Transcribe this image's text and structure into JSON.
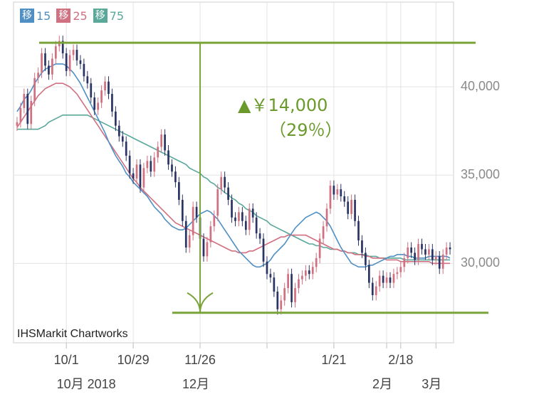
{
  "chart_data": {
    "type": "candlestick",
    "credit": "IHSMarkit Chartworks",
    "legend": [
      {
        "label": "移",
        "name": "15",
        "color": "#4f8fc4"
      },
      {
        "label": "移",
        "name": "25",
        "color": "#d07080"
      },
      {
        "label": "移",
        "name": "75",
        "color": "#5aa89a"
      }
    ],
    "ylim": [
      25500,
      44800
    ],
    "y_ticks": [
      {
        "value": 30000,
        "label": "30,000"
      },
      {
        "value": 35000,
        "label": "35,000"
      },
      {
        "value": 40000,
        "label": "40,000"
      }
    ],
    "x_ticks": [
      {
        "t": 14,
        "label": "10/1",
        "sub": "10月 2018"
      },
      {
        "t": 33,
        "label": "10/29",
        "sub": ""
      },
      {
        "t": 52,
        "label": "11/26",
        "sub": "12月"
      },
      {
        "t": 71,
        "label": "",
        "sub": ""
      },
      {
        "t": 90,
        "label": "1/21",
        "sub": ""
      },
      {
        "t": 105,
        "label": "",
        "sub": "2月"
      },
      {
        "t": 109,
        "label": "2/18",
        "sub": ""
      },
      {
        "t": 119,
        "label": "",
        "sub": "3月"
      }
    ],
    "t_range": [
      -1,
      124
    ],
    "close": [
      38000,
      38800,
      39600,
      37900,
      39200,
      40500,
      40800,
      41900,
      41200,
      40700,
      41600,
      42300,
      42600,
      41900,
      40900,
      41800,
      42100,
      41500,
      41300,
      40600,
      40200,
      39400,
      38700,
      39100,
      39800,
      40300,
      39600,
      38600,
      37800,
      37200,
      36900,
      36100,
      35100,
      34800,
      35600,
      34300,
      35400,
      35800,
      35200,
      36000,
      36600,
      37300,
      36400,
      35600,
      35200,
      34600,
      33600,
      32400,
      30900,
      31600,
      33200,
      32600,
      31400,
      30400,
      31200,
      32100,
      32700,
      34200,
      34900,
      34300,
      33600,
      32600,
      32400,
      32900,
      32400,
      31900,
      33100,
      32600,
      31700,
      31400,
      30100,
      29400,
      29200,
      28400,
      27400,
      27900,
      28600,
      29400,
      27800,
      28600,
      29100,
      29300,
      29600,
      29400,
      29800,
      30300,
      31400,
      32100,
      33100,
      34400,
      33900,
      34200,
      33800,
      33500,
      32800,
      33600,
      32400,
      31300,
      30600,
      29900,
      28900,
      28200,
      28700,
      29300,
      28900,
      29200,
      28900,
      29400,
      29500,
      29800,
      30300,
      30900,
      30600,
      30200,
      31100,
      30800,
      30500,
      30800,
      30200,
      30400,
      29700,
      30500,
      30900,
      30800
    ],
    "ma15": [
      38600,
      38900,
      39300,
      39500,
      39800,
      40200,
      40500,
      40800,
      41000,
      41100,
      41200,
      41300,
      41300,
      41300,
      41200,
      41000,
      40800,
      40500,
      40200,
      39800,
      39400,
      39000,
      38600,
      38200,
      37800,
      37400,
      36900,
      36500,
      36100,
      35800,
      35500,
      35100,
      34900,
      34600,
      34400,
      34200,
      34000,
      33800,
      33500,
      33200,
      33000,
      32800,
      32500,
      32300,
      32100,
      32000,
      31900,
      31900,
      32000,
      32200,
      32400,
      32600,
      32800,
      32900,
      33000,
      32900,
      32700,
      32500,
      32200,
      31900,
      31600,
      31300,
      31000,
      30700,
      30500,
      30300,
      30100,
      29900,
      29800,
      29800,
      29900,
      30000,
      30200,
      30500,
      30700,
      30900,
      31100,
      31400,
      31700,
      32000,
      32200,
      32400,
      32600,
      32700,
      32800,
      32900,
      32800,
      32600,
      32400,
      32100,
      31700,
      31300,
      30900,
      30600,
      30300,
      30000,
      29900,
      29800,
      29800,
      29800,
      29900,
      29900,
      30000,
      30100,
      30200,
      30300,
      30400,
      30400,
      30500,
      30500,
      30500,
      30400,
      30400,
      30300,
      30300,
      30300,
      30300,
      30400,
      30400,
      30400,
      30400,
      30400,
      30400,
      30300
    ],
    "ma25": [
      37700,
      38000,
      38300,
      38600,
      38900,
      39200,
      39500,
      39700,
      39900,
      40000,
      40100,
      40200,
      40200,
      40200,
      40100,
      40000,
      39800,
      39600,
      39300,
      39000,
      38700,
      38400,
      38100,
      37800,
      37500,
      37200,
      36900,
      36600,
      36300,
      36000,
      35700,
      35400,
      35100,
      34800,
      34600,
      34300,
      34100,
      33900,
      33700,
      33500,
      33300,
      33100,
      32900,
      32700,
      32500,
      32300,
      32200,
      32100,
      32000,
      31900,
      31800,
      31700,
      31600,
      31500,
      31400,
      31300,
      31200,
      31100,
      31000,
      30900,
      30800,
      30700,
      30700,
      30600,
      30600,
      30600,
      30700,
      30700,
      30800,
      30900,
      31000,
      31100,
      31200,
      31300,
      31400,
      31500,
      31500,
      31600,
      31600,
      31600,
      31600,
      31600,
      31600,
      31500,
      31400,
      31300,
      31200,
      31100,
      31000,
      30900,
      30800,
      30800,
      30700,
      30700,
      30600,
      30600,
      30500,
      30500,
      30500,
      30400,
      30400,
      30300,
      30300,
      30300,
      30300,
      30200,
      30200,
      30200,
      30200,
      30100,
      30100,
      30100,
      30100,
      30100,
      30100,
      30100,
      30100,
      30100,
      30000,
      30000,
      30000,
      30000,
      30000,
      30000
    ],
    "ma75": [
      37600,
      37600,
      37600,
      37600,
      37600,
      37600,
      37600,
      37700,
      37800,
      38000,
      38100,
      38200,
      38300,
      38400,
      38400,
      38400,
      38400,
      38400,
      38400,
      38400,
      38400,
      38300,
      38200,
      38100,
      38000,
      37900,
      37800,
      37700,
      37600,
      37500,
      37400,
      37300,
      37200,
      37100,
      37000,
      36900,
      36800,
      36700,
      36600,
      36500,
      36400,
      36300,
      36200,
      36100,
      36000,
      35900,
      35800,
      35700,
      35600,
      35400,
      35300,
      35200,
      35100,
      34900,
      34800,
      34600,
      34500,
      34300,
      34200,
      34000,
      33900,
      33700,
      33600,
      33400,
      33300,
      33100,
      33000,
      32900,
      32700,
      32600,
      32500,
      32400,
      32200,
      32100,
      32000,
      31900,
      31800,
      31700,
      31600,
      31500,
      31400,
      31300,
      31200,
      31100,
      31100,
      31000,
      31000,
      30900,
      30900,
      30800,
      30800,
      30800,
      30700,
      30700,
      30600,
      30600,
      30600,
      30500,
      30500,
      30500,
      30400,
      30400,
      30400,
      30300,
      30300,
      30300,
      30300,
      30300,
      30300,
      30300,
      30200,
      30200,
      30200,
      30200,
      30200,
      30200,
      30200,
      30200,
      30200,
      30200,
      30200,
      30200,
      30200,
      30200
    ],
    "annotations": {
      "high": 42500,
      "low": 27200,
      "change_label": "▲￥14,000",
      "change_pct": "（29％）"
    }
  }
}
